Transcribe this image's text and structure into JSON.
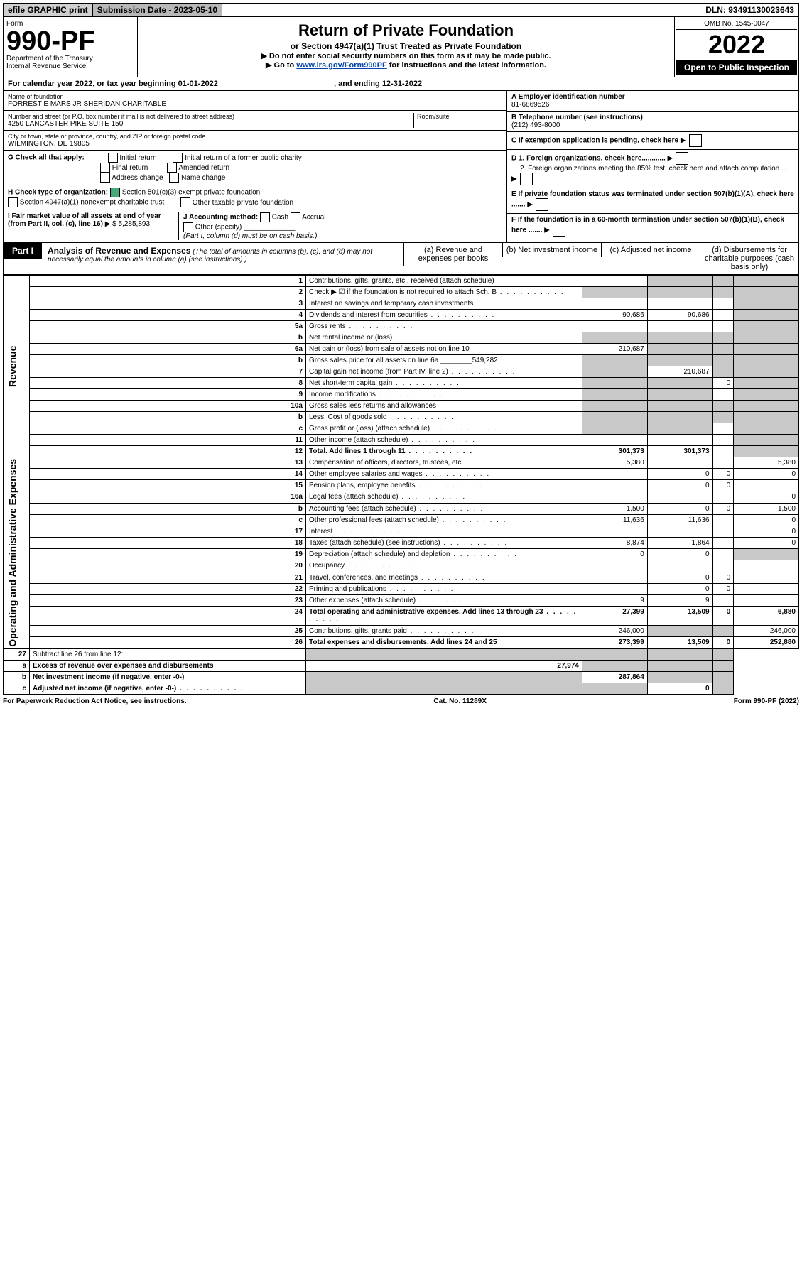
{
  "top": {
    "efile": "efile GRAPHIC print",
    "sub_label": "Submission Date - 2023-05-10",
    "dln": "DLN: 93491130023643"
  },
  "header": {
    "form_label": "Form",
    "form_no": "990-PF",
    "dept": "Department of the Treasury",
    "irs": "Internal Revenue Service",
    "title": "Return of Private Foundation",
    "subtitle": "or Section 4947(a)(1) Trust Treated as Private Foundation",
    "note1": "▶ Do not enter social security numbers on this form as it may be made public.",
    "note2_pre": "▶ Go to ",
    "note2_link": "www.irs.gov/Form990PF",
    "note2_post": " for instructions and the latest information.",
    "omb": "OMB No. 1545-0047",
    "year": "2022",
    "open": "Open to Public Inspection"
  },
  "cal": {
    "text": "For calendar year 2022, or tax year beginning 01-01-2022",
    "ending": ", and ending 12-31-2022"
  },
  "entity": {
    "name_label": "Name of foundation",
    "name": "FORREST E MARS JR SHERIDAN CHARITABLE",
    "addr_label": "Number and street (or P.O. box number if mail is not delivered to street address)",
    "addr": "4250 LANCASTER PIKE SUITE 150",
    "room_label": "Room/suite",
    "city_label": "City or town, state or province, country, and ZIP or foreign postal code",
    "city": "WILMINGTON, DE  19805",
    "a_label": "A Employer identification number",
    "ein": "81-6869526",
    "b_label": "B Telephone number (see instructions)",
    "phone": "(212) 493-8000",
    "c_label": "C If exemption application is pending, check here",
    "d1": "D 1. Foreign organizations, check here............",
    "d2": "2. Foreign organizations meeting the 85% test, check here and attach computation ...",
    "e": "E  If private foundation status was terminated under section 507(b)(1)(A), check here .......",
    "f": "F  If the foundation is in a 60-month termination under section 507(b)(1)(B), check here .......",
    "g_label": "G Check all that apply:",
    "g_opts": [
      "Initial return",
      "Final return",
      "Address change",
      "Initial return of a former public charity",
      "Amended return",
      "Name change"
    ],
    "h_label": "H Check type of organization:",
    "h1": "Section 501(c)(3) exempt private foundation",
    "h2": "Section 4947(a)(1) nonexempt charitable trust",
    "h3": "Other taxable private foundation",
    "i_label": "I Fair market value of all assets at end of year (from Part II, col. (c), line 16)",
    "i_val": "▶ $  5,285,893",
    "j_label": "J Accounting method:",
    "j_cash": "Cash",
    "j_accrual": "Accrual",
    "j_other": "Other (specify)",
    "j_note": "(Part I, column (d) must be on cash basis.)"
  },
  "part1": {
    "label": "Part I",
    "title": "Analysis of Revenue and Expenses",
    "note": "(The total of amounts in columns (b), (c), and (d) may not necessarily equal the amounts in column (a) (see instructions).)",
    "cols": {
      "a": "(a)  Revenue and expenses per books",
      "b": "(b)  Net investment income",
      "c": "(c)  Adjusted net income",
      "d": "(d)  Disbursements for charitable purposes (cash basis only)"
    }
  },
  "sections": {
    "revenue": "Revenue",
    "opex": "Operating and Administrative Expenses"
  },
  "lines": [
    {
      "no": "1",
      "desc": "Contributions, gifts, grants, etc., received (attach schedule)",
      "a": "",
      "b": "grey",
      "c": "grey",
      "d": "grey"
    },
    {
      "no": "2",
      "desc": "Check ▶ ☑ if the foundation is not required to attach Sch. B",
      "a": "grey",
      "b": "grey",
      "c": "grey",
      "d": "grey",
      "dots": true
    },
    {
      "no": "3",
      "desc": "Interest on savings and temporary cash investments",
      "a": "",
      "b": "",
      "c": "",
      "d": "grey"
    },
    {
      "no": "4",
      "desc": "Dividends and interest from securities",
      "a": "90,686",
      "b": "90,686",
      "c": "",
      "d": "grey",
      "dots": true
    },
    {
      "no": "5a",
      "desc": "Gross rents",
      "a": "",
      "b": "",
      "c": "",
      "d": "grey",
      "dots": true
    },
    {
      "no": "b",
      "desc": "Net rental income or (loss)",
      "a": "grey",
      "b": "grey",
      "c": "grey",
      "d": "grey"
    },
    {
      "no": "6a",
      "desc": "Net gain or (loss) from sale of assets not on line 10",
      "a": "210,687",
      "b": "grey",
      "c": "grey",
      "d": "grey"
    },
    {
      "no": "b",
      "desc": "Gross sales price for all assets on line 6a ________549,282",
      "a": "grey",
      "b": "grey",
      "c": "grey",
      "d": "grey"
    },
    {
      "no": "7",
      "desc": "Capital gain net income (from Part IV, line 2)",
      "a": "grey",
      "b": "210,687",
      "c": "grey",
      "d": "grey",
      "dots": true
    },
    {
      "no": "8",
      "desc": "Net short-term capital gain",
      "a": "grey",
      "b": "grey",
      "c": "0",
      "d": "grey",
      "dots": true
    },
    {
      "no": "9",
      "desc": "Income modifications",
      "a": "grey",
      "b": "grey",
      "c": "",
      "d": "grey",
      "dots": true
    },
    {
      "no": "10a",
      "desc": "Gross sales less returns and allowances",
      "a": "grey",
      "b": "grey",
      "c": "grey",
      "d": "grey"
    },
    {
      "no": "b",
      "desc": "Less: Cost of goods sold",
      "a": "grey",
      "b": "grey",
      "c": "grey",
      "d": "grey",
      "dots": true
    },
    {
      "no": "c",
      "desc": "Gross profit or (loss) (attach schedule)",
      "a": "grey",
      "b": "grey",
      "c": "",
      "d": "grey",
      "dots": true
    },
    {
      "no": "11",
      "desc": "Other income (attach schedule)",
      "a": "",
      "b": "",
      "c": "",
      "d": "grey",
      "dots": true
    },
    {
      "no": "12",
      "desc": "Total. Add lines 1 through 11",
      "a": "301,373",
      "b": "301,373",
      "c": "",
      "d": "grey",
      "bold": true,
      "dots": true
    }
  ],
  "opex_lines": [
    {
      "no": "13",
      "desc": "Compensation of officers, directors, trustees, etc.",
      "a": "5,380",
      "b": "",
      "c": "",
      "d": "5,380"
    },
    {
      "no": "14",
      "desc": "Other employee salaries and wages",
      "a": "",
      "b": "0",
      "c": "0",
      "d": "0",
      "dots": true
    },
    {
      "no": "15",
      "desc": "Pension plans, employee benefits",
      "a": "",
      "b": "0",
      "c": "0",
      "d": "",
      "dots": true
    },
    {
      "no": "16a",
      "desc": "Legal fees (attach schedule)",
      "a": "",
      "b": "",
      "c": "",
      "d": "0",
      "dots": true
    },
    {
      "no": "b",
      "desc": "Accounting fees (attach schedule)",
      "a": "1,500",
      "b": "0",
      "c": "0",
      "d": "1,500",
      "dots": true
    },
    {
      "no": "c",
      "desc": "Other professional fees (attach schedule)",
      "a": "11,636",
      "b": "11,636",
      "c": "",
      "d": "0",
      "dots": true
    },
    {
      "no": "17",
      "desc": "Interest",
      "a": "",
      "b": "",
      "c": "",
      "d": "0",
      "dots": true
    },
    {
      "no": "18",
      "desc": "Taxes (attach schedule) (see instructions)",
      "a": "8,874",
      "b": "1,864",
      "c": "",
      "d": "0",
      "dots": true
    },
    {
      "no": "19",
      "desc": "Depreciation (attach schedule) and depletion",
      "a": "0",
      "b": "0",
      "c": "",
      "d": "grey",
      "dots": true
    },
    {
      "no": "20",
      "desc": "Occupancy",
      "a": "",
      "b": "",
      "c": "",
      "d": "",
      "dots": true
    },
    {
      "no": "21",
      "desc": "Travel, conferences, and meetings",
      "a": "",
      "b": "0",
      "c": "0",
      "d": "",
      "dots": true
    },
    {
      "no": "22",
      "desc": "Printing and publications",
      "a": "",
      "b": "0",
      "c": "0",
      "d": "",
      "dots": true
    },
    {
      "no": "23",
      "desc": "Other expenses (attach schedule)",
      "a": "9",
      "b": "9",
      "c": "",
      "d": "",
      "dots": true
    },
    {
      "no": "24",
      "desc": "Total operating and administrative expenses. Add lines 13 through 23",
      "a": "27,399",
      "b": "13,509",
      "c": "0",
      "d": "6,880",
      "bold": true,
      "dots": true
    },
    {
      "no": "25",
      "desc": "Contributions, gifts, grants paid",
      "a": "246,000",
      "b": "grey",
      "c": "grey",
      "d": "246,000",
      "dots": true
    },
    {
      "no": "26",
      "desc": "Total expenses and disbursements. Add lines 24 and 25",
      "a": "273,399",
      "b": "13,509",
      "c": "0",
      "d": "252,880",
      "bold": true
    }
  ],
  "bottom_lines": [
    {
      "no": "27",
      "desc": "Subtract line 26 from line 12:",
      "a": "grey",
      "b": "grey",
      "c": "grey",
      "d": "grey"
    },
    {
      "no": "a",
      "desc": "Excess of revenue over expenses and disbursements",
      "a": "27,974",
      "b": "grey",
      "c": "grey",
      "d": "grey",
      "bold": true
    },
    {
      "no": "b",
      "desc": "Net investment income (if negative, enter -0-)",
      "a": "grey",
      "b": "287,864",
      "c": "grey",
      "d": "grey",
      "bold": true
    },
    {
      "no": "c",
      "desc": "Adjusted net income (if negative, enter -0-)",
      "a": "grey",
      "b": "grey",
      "c": "0",
      "d": "grey",
      "bold": true,
      "dots": true
    }
  ],
  "footer": {
    "left": "For Paperwork Reduction Act Notice, see instructions.",
    "mid": "Cat. No. 11289X",
    "right": "Form 990-PF (2022)"
  }
}
